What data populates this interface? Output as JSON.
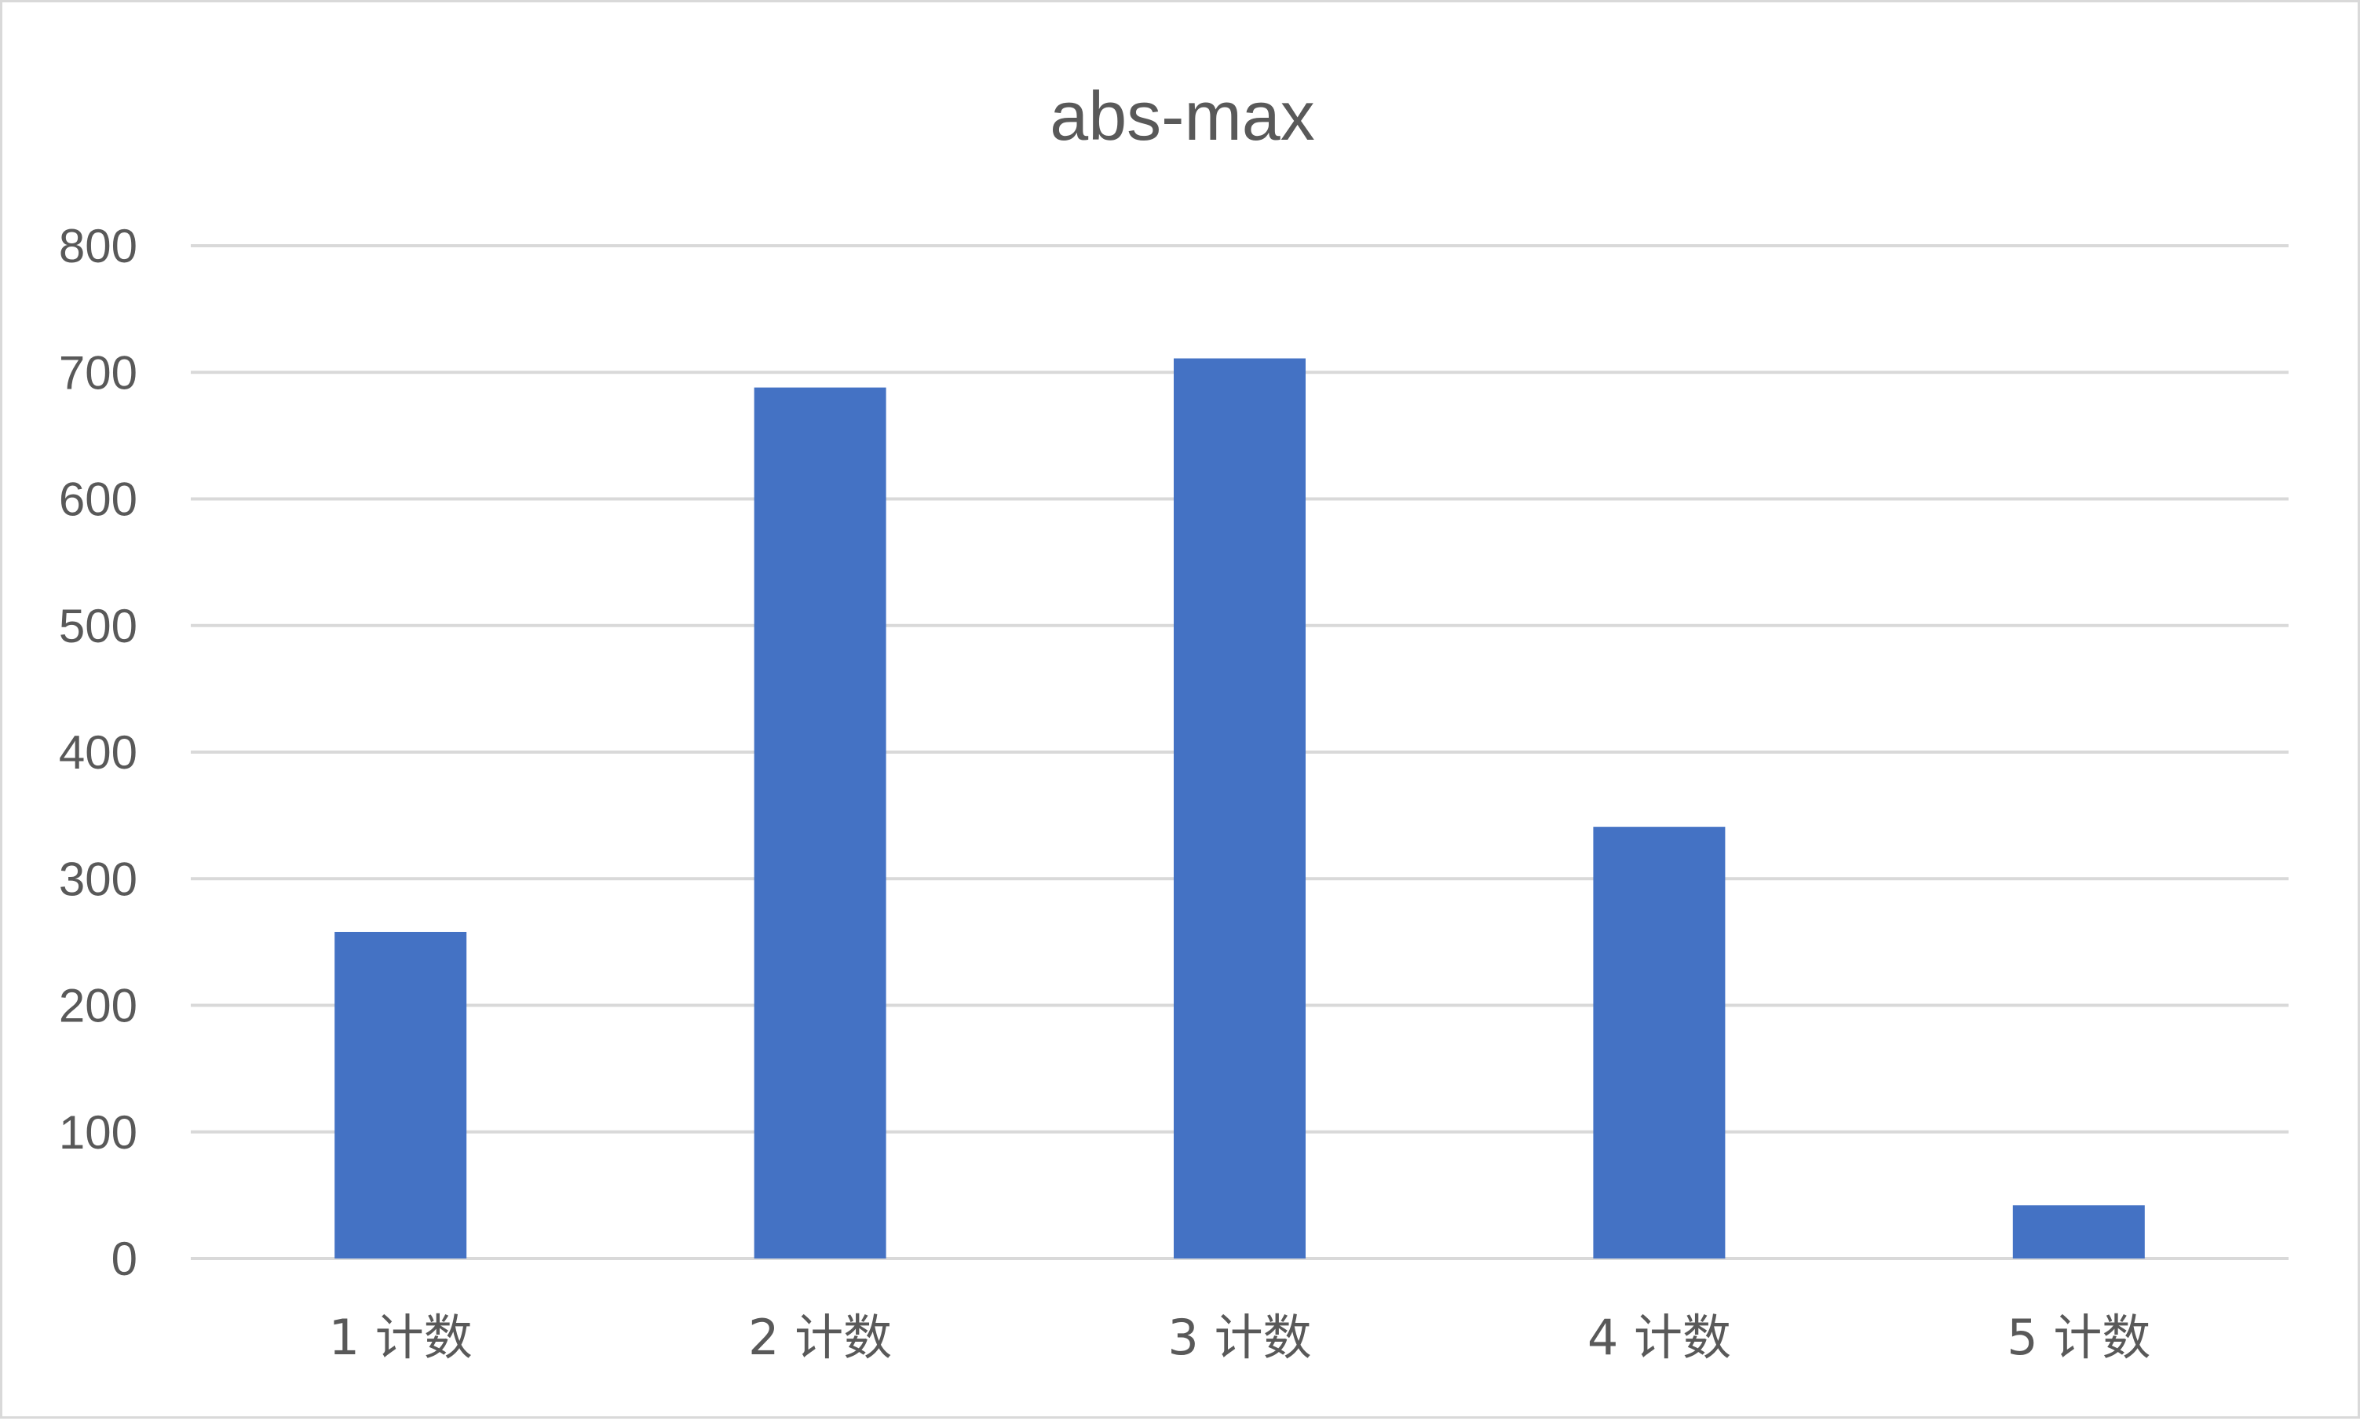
{
  "chart_data": {
    "type": "bar",
    "title": "abs-max",
    "xlabel": "",
    "ylabel": "",
    "categories": [
      "1 计数",
      "2 计数",
      "3 计数",
      "4 计数",
      "5 计数"
    ],
    "values": [
      258,
      688,
      711,
      341,
      42
    ],
    "ylim": [
      0,
      800
    ],
    "yticks": [
      0,
      100,
      200,
      300,
      400,
      500,
      600,
      700,
      800
    ],
    "grid": true,
    "legend": "none",
    "colors": {
      "bar": "#4472C4",
      "grid": "#D9D9D9",
      "text": "#595959",
      "border": "#D9D9D9"
    }
  }
}
